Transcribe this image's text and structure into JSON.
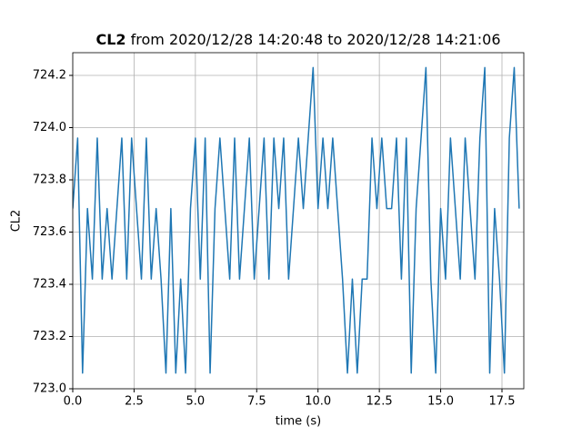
{
  "chart_data": {
    "type": "line",
    "title_name": "CL2",
    "title": "from 2020/12/28 14:20:48 to 2020/12/28 14:21:06",
    "xlabel": "time (s)",
    "ylabel": "CL2",
    "color": "#1f77b4",
    "grid": true,
    "xlim": [
      0,
      18.39
    ],
    "ylim": [
      723.0,
      724.287
    ],
    "xticks": [
      {
        "value": 0,
        "label": "0.0"
      },
      2.5,
      {
        "value": 5,
        "label": "5.0"
      },
      7.5,
      {
        "value": 10,
        "label": "10.0"
      },
      12.5,
      {
        "value": 15,
        "label": "15.0"
      },
      17.5
    ],
    "yticks": [
      {
        "value": 723,
        "label": "723.0"
      },
      723.2,
      723.4,
      723.6,
      723.8,
      {
        "value": 724,
        "label": "724.0"
      },
      724.2
    ],
    "x": [
      0,
      0.2,
      0.4,
      0.6,
      0.8,
      1.0,
      1.2,
      1.4,
      1.6,
      1.8,
      2.0,
      2.2,
      2.4,
      2.6,
      2.8,
      3.0,
      3.2,
      3.4,
      3.6,
      3.8,
      4.0,
      4.2,
      4.4,
      4.6,
      4.8,
      5.0,
      5.2,
      5.4,
      5.6,
      5.8,
      6.0,
      6.2,
      6.4,
      6.6,
      6.8,
      7.0,
      7.2,
      7.4,
      7.6,
      7.8,
      8.0,
      8.2,
      8.4,
      8.6,
      8.8,
      9.0,
      9.2,
      9.4,
      9.6,
      9.8,
      10.0,
      10.2,
      10.4,
      10.6,
      10.8,
      11.0,
      11.2,
      11.4,
      11.6,
      11.8,
      12.0,
      12.2,
      12.4,
      12.6,
      12.8,
      13.0,
      13.2,
      13.4,
      13.6,
      13.8,
      14.0,
      14.2,
      14.4,
      14.6,
      14.8,
      15.0,
      15.2,
      15.4,
      15.6,
      15.8,
      16.0,
      16.2,
      16.4,
      16.6,
      16.8,
      17.0,
      17.2,
      17.4,
      17.6,
      17.8,
      18.0,
      18.2
    ],
    "values": [
      723.69,
      723.96,
      723.06,
      723.69,
      723.42,
      723.96,
      723.42,
      723.69,
      723.42,
      723.69,
      723.96,
      723.42,
      723.96,
      723.69,
      723.42,
      723.96,
      723.42,
      723.69,
      723.42,
      723.06,
      723.69,
      723.06,
      723.42,
      723.06,
      723.69,
      723.96,
      723.42,
      723.96,
      723.06,
      723.69,
      723.96,
      723.69,
      723.42,
      723.96,
      723.42,
      723.69,
      723.96,
      723.42,
      723.69,
      723.96,
      723.42,
      723.96,
      723.69,
      723.96,
      723.42,
      723.69,
      723.96,
      723.69,
      723.96,
      724.23,
      723.69,
      723.96,
      723.69,
      723.96,
      723.69,
      723.42,
      723.06,
      723.42,
      723.06,
      723.42,
      723.42,
      723.96,
      723.69,
      723.96,
      723.69,
      723.69,
      723.96,
      723.42,
      723.96,
      723.06,
      723.69,
      723.96,
      724.23,
      723.42,
      723.06,
      723.69,
      723.42,
      723.96,
      723.69,
      723.42,
      723.96,
      723.69,
      723.42,
      723.96,
      724.23,
      723.06,
      723.69,
      723.42,
      723.06,
      723.96,
      724.23,
      723.69
    ]
  }
}
